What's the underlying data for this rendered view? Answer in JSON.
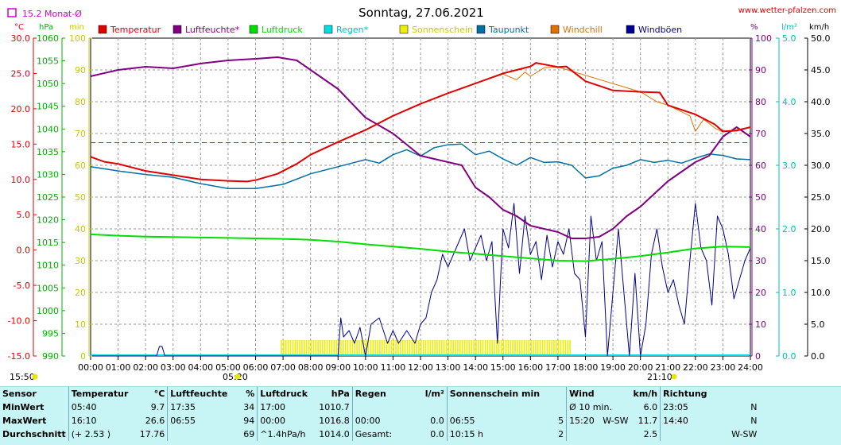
{
  "header": {
    "title": "Sonntag, 27.06.2021",
    "site": "www.wetter-pfalzen.com",
    "monthly_avg": "15.2 Monat-Ø",
    "left_units": [
      "°C",
      "hPa",
      "min"
    ],
    "right_units": [
      "%",
      "l/m²",
      "km/h"
    ],
    "sunrise": "05:20",
    "sunset": "21:10",
    "corner_time": "15:50"
  },
  "colors": {
    "temperature": "#e00000",
    "humidity": "#800080",
    "pressure": "#00dd00",
    "rain": "#00dddd",
    "sunshine": "#eeee00",
    "dewpoint": "#0070a0",
    "windchill": "#e07000",
    "gusts": "#000090"
  },
  "legend": [
    {
      "label": "Temperatur",
      "color": "#e00000"
    },
    {
      "label": "Luftfeuchte*",
      "color": "#800080"
    },
    {
      "label": "Luftdruck",
      "color": "#00dd00"
    },
    {
      "label": "Regen*",
      "color": "#00dddd"
    },
    {
      "label": "Sonnenschein",
      "color": "#eeee00"
    },
    {
      "label": "Taupunkt",
      "color": "#0070a0"
    },
    {
      "label": "Windchill",
      "color": "#e07000"
    },
    {
      "label": "Windböen",
      "color": "#000090"
    }
  ],
  "chart_data": {
    "type": "line",
    "title": "Sonntag, 27.06.2021",
    "x_ticks": [
      "00:00",
      "01:00",
      "02:00",
      "03:00",
      "04:00",
      "05:00",
      "06:00",
      "07:00",
      "08:00",
      "09:00",
      "10:00",
      "11:00",
      "12:00",
      "13:00",
      "14:00",
      "15:00",
      "16:00",
      "17:00",
      "18:00",
      "19:00",
      "20:00",
      "21:00",
      "22:00",
      "23:00",
      "24:00"
    ],
    "axes": {
      "temperature": {
        "unit": "°C",
        "ylim": [
          -15,
          30
        ],
        "ticks": [
          "30.0",
          "25.0",
          "20.0",
          "15.0",
          "10.0",
          "5.0",
          "0.0",
          "-5.0",
          "-10.0",
          "-15.0"
        ]
      },
      "pressure": {
        "unit": "hPa",
        "ylim": [
          990,
          1060
        ],
        "ticks": [
          "1060",
          "1055",
          "1050",
          "1045",
          "1040",
          "1035",
          "1030",
          "1025",
          "1020",
          "1015",
          "1010",
          "1005",
          "1000",
          "995",
          "990"
        ]
      },
      "sunshine": {
        "unit": "min",
        "ylim": [
          0,
          100
        ],
        "ticks": [
          "100",
          "90",
          "80",
          "70",
          "60",
          "50",
          "40",
          "30",
          "20",
          "10",
          "0"
        ]
      },
      "humidity": {
        "unit": "%",
        "ylim": [
          0,
          100
        ],
        "ticks": [
          "100",
          "90",
          "80",
          "70",
          "60",
          "50",
          "40",
          "30",
          "20",
          "10",
          "0"
        ]
      },
      "rain": {
        "unit": "l/m²",
        "ylim": [
          0,
          5
        ],
        "ticks": [
          "5.0",
          "4.0",
          "3.0",
          "2.0",
          "1.0",
          "0.0"
        ]
      },
      "wind": {
        "unit": "km/h",
        "ylim": [
          0,
          50
        ],
        "ticks": [
          "50.0",
          "45.0",
          "40.0",
          "35.0",
          "30.0",
          "25.0",
          "20.0",
          "15.0",
          "10.0",
          "5.0",
          "0.0"
        ]
      }
    },
    "monthly_avg_temp": 15.2,
    "series": [
      {
        "name": "Temperatur",
        "axis": "temperature",
        "x": [
          0,
          0.5,
          1,
          2,
          3,
          4,
          5,
          5.7,
          6,
          6.8,
          7.5,
          8,
          9,
          10,
          11,
          12,
          13,
          14,
          15,
          16,
          16.2,
          17,
          17.3,
          18,
          19,
          20,
          20.7,
          21,
          22,
          22.7,
          23,
          23.5,
          24
        ],
        "y": [
          13.2,
          12.5,
          12.2,
          11.2,
          10.6,
          10.0,
          9.8,
          9.7,
          9.9,
          10.8,
          12.2,
          13.5,
          15.3,
          17.0,
          19.0,
          20.7,
          22.2,
          23.6,
          25.0,
          26.0,
          26.5,
          25.9,
          26.0,
          23.9,
          22.6,
          22.4,
          22.3,
          20.5,
          19.2,
          17.8,
          16.8,
          16.9,
          17.4
        ]
      },
      {
        "name": "Windchill",
        "axis": "temperature",
        "x": [
          14.0,
          15.0,
          15.5,
          15.8,
          16.0,
          16.5,
          17.0,
          20.0,
          20.6,
          21.0,
          21.8,
          22.0,
          22.3,
          22.7,
          23.0,
          24.0
        ],
        "y": [
          23.6,
          24.9,
          24.1,
          25.2,
          24.6,
          25.8,
          25.9,
          22.4,
          21.0,
          20.5,
          19.0,
          16.8,
          18.5,
          17.3,
          16.7,
          17.4
        ]
      },
      {
        "name": "Taupunkt",
        "axis": "temperature",
        "x": [
          0,
          1,
          2,
          3,
          4,
          5,
          6,
          7,
          8,
          9,
          9.5,
          10,
          10.5,
          11,
          11.5,
          12,
          12.5,
          13,
          13.5,
          14,
          14.5,
          15,
          15.5,
          16,
          16.5,
          17,
          17.5,
          18,
          18.5,
          19,
          19.5,
          20,
          20.5,
          21,
          21.5,
          22,
          22.5,
          23,
          23.5,
          24
        ],
        "y": [
          11.8,
          11.2,
          10.7,
          10.3,
          9.4,
          8.7,
          8.7,
          9.3,
          10.8,
          11.8,
          12.3,
          12.8,
          12.3,
          13.5,
          14.2,
          13.3,
          14.5,
          14.9,
          15.0,
          13.5,
          14.0,
          12.9,
          12.0,
          13.1,
          12.4,
          12.5,
          12.0,
          10.2,
          10.5,
          11.6,
          12.0,
          12.8,
          12.4,
          12.7,
          12.3,
          13.0,
          13.6,
          13.4,
          12.9,
          12.8
        ]
      },
      {
        "name": "Luftfeuchte",
        "axis": "humidity",
        "x": [
          0,
          1,
          2,
          3,
          4,
          5,
          6,
          6.8,
          7.5,
          8,
          9,
          10,
          11,
          12,
          12.5,
          13,
          13.5,
          14,
          14.5,
          15,
          15.5,
          16,
          16.5,
          17,
          17.5,
          18,
          18.5,
          19,
          19.5,
          20,
          20.5,
          21,
          22,
          22.5,
          23,
          23.5,
          24
        ],
        "y": [
          88,
          90,
          91,
          90.5,
          92,
          93,
          93.5,
          94,
          93,
          90,
          84,
          75,
          70,
          63,
          62,
          61,
          60,
          53,
          50,
          46,
          44,
          41,
          40,
          39,
          37,
          37,
          37.5,
          40,
          44,
          47,
          51,
          55,
          61,
          63,
          69,
          72,
          69
        ]
      },
      {
        "name": "Luftdruck",
        "axis": "pressure",
        "x": [
          0,
          1,
          2,
          3,
          4,
          5,
          6,
          7,
          8,
          9,
          10,
          11,
          12,
          13,
          14,
          15,
          16,
          17,
          18,
          19,
          20,
          21,
          22,
          23,
          24
        ],
        "y": [
          1016.8,
          1016.5,
          1016.3,
          1016.2,
          1016.1,
          1016.0,
          1015.9,
          1015.8,
          1015.6,
          1015.2,
          1014.6,
          1014.1,
          1013.6,
          1013.0,
          1012.5,
          1012.0,
          1011.5,
          1011.0,
          1010.9,
          1011.4,
          1012.0,
          1012.8,
          1013.7,
          1014.1,
          1014.0
        ]
      },
      {
        "name": "Windböen",
        "axis": "wind",
        "x": [
          0,
          2.4,
          2.5,
          2.6,
          2.7,
          9.0,
          9.1,
          9.2,
          9.4,
          9.6,
          9.8,
          10.0,
          10.2,
          10.5,
          10.8,
          11.0,
          11.2,
          11.5,
          11.8,
          12.0,
          12.2,
          12.4,
          12.6,
          12.8,
          13.0,
          13.2,
          13.4,
          13.6,
          13.8,
          14.0,
          14.2,
          14.4,
          14.6,
          14.8,
          15.0,
          15.2,
          15.4,
          15.6,
          15.8,
          16.0,
          16.2,
          16.4,
          16.6,
          16.8,
          17.0,
          17.2,
          17.4,
          17.6,
          17.8,
          18.0,
          18.2,
          18.4,
          18.6,
          18.8,
          19.0,
          19.2,
          19.4,
          19.6,
          19.8,
          20.0,
          20.2,
          20.4,
          20.6,
          20.8,
          21.0,
          21.2,
          21.4,
          21.6,
          21.8,
          22.0,
          22.2,
          22.4,
          22.6,
          22.8,
          23.0,
          23.2,
          23.4,
          23.6,
          23.8,
          24.0
        ],
        "y": [
          0,
          0,
          1.5,
          1.5,
          0,
          0,
          6,
          3,
          4,
          2,
          4.5,
          0,
          5,
          6,
          2,
          4,
          2,
          4,
          2,
          5,
          6,
          10,
          12,
          16,
          14,
          16,
          18,
          20,
          15,
          17,
          19,
          15,
          18,
          2,
          20,
          17,
          24,
          13,
          22,
          16,
          18,
          12,
          19,
          14,
          18,
          16,
          20,
          13,
          12,
          3,
          22,
          15,
          18,
          0,
          10,
          20,
          10,
          0,
          13,
          0,
          5,
          16,
          20,
          14,
          10,
          12,
          8,
          5,
          15,
          24,
          17,
          15,
          8,
          22,
          20,
          16,
          9,
          12,
          15,
          17
        ]
      }
    ],
    "sunshine_bars": {
      "start": "06:55",
      "end": "17:30",
      "minutes_per_interval": 5
    },
    "grid": true
  },
  "summary": {
    "headers": {
      "sensor": "Sensor",
      "temperature": "Temperatur",
      "temp_unit": "°C",
      "humidity": "Luftfeuchte",
      "hum_unit": "%",
      "pressure": "Luftdruck",
      "press_unit": "hPa",
      "rain": "Regen",
      "rain_unit": "l/m²",
      "sunshine": "Sonnenschein min",
      "wind": "Wind",
      "wind_unit": "km/h",
      "direction": "Richtung"
    },
    "rows": [
      {
        "label": "MinWert",
        "temp_time": "05:40",
        "temp_val": "9.7",
        "hum_time": "17:35",
        "hum_val": "34",
        "press_time": "17:00",
        "press_val": "1010.7",
        "rain_time": "",
        "rain_val": "",
        "sun_time": "",
        "sun_val": "",
        "wind_label": "Ø 10 min.",
        "wind_val": "6.0",
        "dir_time": "23:05",
        "dir_val": "N"
      },
      {
        "label": "MaxWert",
        "temp_time": "16:10",
        "temp_val": "26.6",
        "hum_time": "06:55",
        "hum_val": "94",
        "press_time": "00:00",
        "press_val": "1016.8",
        "rain_time": "00:00",
        "rain_val": "0.0",
        "sun_time": "06:55",
        "sun_val": "5",
        "wind_label": "15:20   W-SW",
        "wind_val": "11.7",
        "dir_time": "14:40",
        "dir_val": "N"
      },
      {
        "label": "Durchschnitt",
        "temp_time": "(+ 2.53 )",
        "temp_val": "17.76",
        "hum_time": "",
        "hum_val": "69",
        "press_time": "^1.4hPa/h",
        "press_val": "1014.0",
        "rain_time": "Gesamt:",
        "rain_val": "0.0",
        "sun_time": "10:15 h",
        "sun_val": "2",
        "wind_label": "",
        "wind_val": "2.5",
        "dir_time": "",
        "dir_val": "W-SW"
      }
    ]
  }
}
